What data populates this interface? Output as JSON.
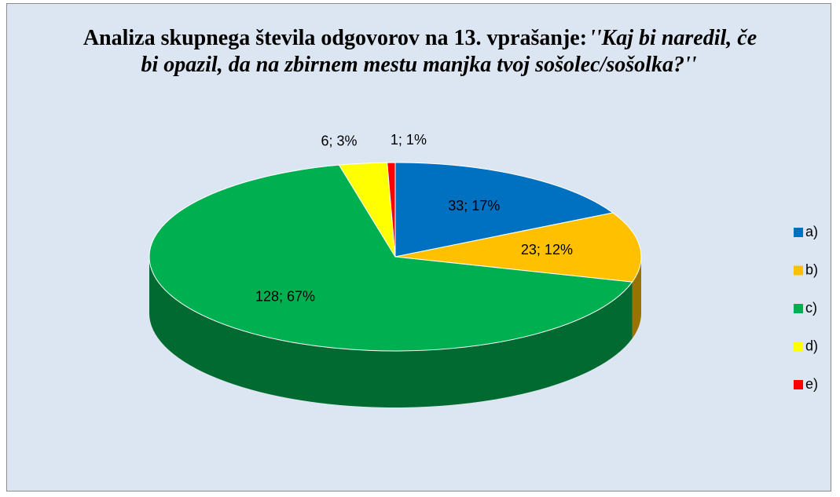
{
  "chart_data": {
    "type": "pie3d",
    "title": [
      "Analiza skupnega števila odgovorov na 13. vprašanje:",
      "''Kaj bi naredil, če bi opazil, da na zbirnem mestu manjka tvoj sošolec/sošolka?''"
    ],
    "categories": [
      "a)",
      "b)",
      "c)",
      "d)",
      "e)"
    ],
    "values": [
      33,
      23,
      128,
      6,
      1
    ],
    "value_labels": [
      "33; 17%",
      "23; 12%",
      "128; 67%",
      "6; 3%",
      "1; 1%"
    ],
    "colors": [
      "#0070c0",
      "#ffc000",
      "#00b050",
      "#ffff00",
      "#ff0000"
    ],
    "legend": "right"
  }
}
